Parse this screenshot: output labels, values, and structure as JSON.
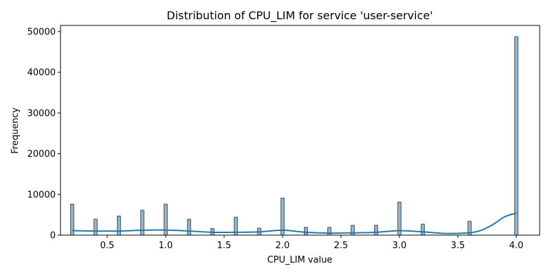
{
  "chart_data": {
    "type": "bar",
    "title": "Distribution of CPU_LIM for service 'user-service'",
    "xlabel": "CPU_LIM value",
    "ylabel": "Frequency",
    "xlim": [
      0.1,
      4.2
    ],
    "ylim": [
      0,
      51500
    ],
    "xticks": [
      0.5,
      1.0,
      1.5,
      2.0,
      2.5,
      3.0,
      3.5,
      4.0
    ],
    "xtick_labels": [
      "0.5",
      "1.0",
      "1.5",
      "2.0",
      "2.5",
      "3.0",
      "3.5",
      "4.0"
    ],
    "yticks": [
      0,
      10000,
      20000,
      30000,
      40000,
      50000
    ],
    "ytick_labels": [
      "0",
      "10000",
      "20000",
      "30000",
      "40000",
      "50000"
    ],
    "grid": false,
    "bar_color": "#1f77b4",
    "bars": [
      {
        "x": 0.2,
        "y": 7600
      },
      {
        "x": 0.4,
        "y": 3900
      },
      {
        "x": 0.6,
        "y": 4700
      },
      {
        "x": 0.8,
        "y": 6100
      },
      {
        "x": 1.0,
        "y": 7600
      },
      {
        "x": 1.2,
        "y": 3900
      },
      {
        "x": 1.4,
        "y": 1600
      },
      {
        "x": 1.6,
        "y": 4400
      },
      {
        "x": 1.8,
        "y": 1700
      },
      {
        "x": 2.0,
        "y": 9100
      },
      {
        "x": 2.2,
        "y": 1900
      },
      {
        "x": 2.4,
        "y": 1900
      },
      {
        "x": 2.6,
        "y": 2400
      },
      {
        "x": 2.8,
        "y": 2400
      },
      {
        "x": 3.0,
        "y": 8100
      },
      {
        "x": 3.2,
        "y": 2700
      },
      {
        "x": 3.6,
        "y": 3400
      },
      {
        "x": 4.0,
        "y": 48700
      }
    ],
    "kde": {
      "color": "#1f77b4",
      "x": [
        0.2,
        0.4,
        0.6,
        0.8,
        1.0,
        1.2,
        1.4,
        1.6,
        1.8,
        2.0,
        2.2,
        2.4,
        2.6,
        2.8,
        3.0,
        3.2,
        3.4,
        3.6,
        3.7,
        3.8,
        3.9,
        4.0
      ],
      "y": [
        1100,
        1000,
        1000,
        1200,
        1250,
        1000,
        700,
        700,
        800,
        1200,
        700,
        500,
        550,
        700,
        1100,
        800,
        400,
        600,
        1200,
        2600,
        4500,
        5400
      ]
    }
  }
}
